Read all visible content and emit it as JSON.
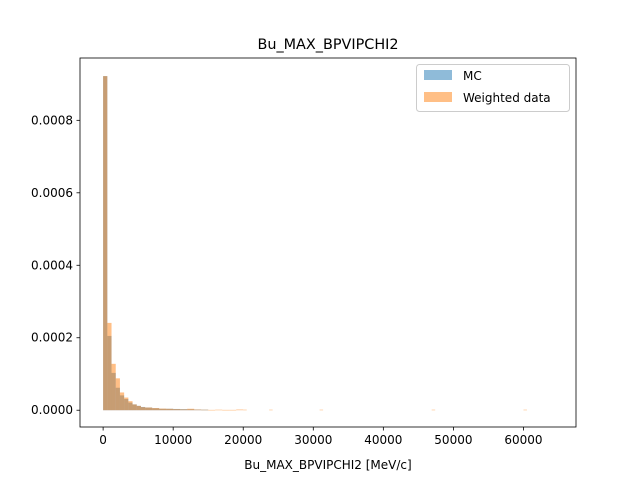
{
  "chart_data": {
    "type": "bar",
    "title": "Bu_MAX_BPVIPCHI2",
    "xlabel": "Bu_MAX_BPVIPCHI2 [MeV/c]",
    "ylabel": "",
    "xlim": [
      -3300,
      67500
    ],
    "ylim": [
      -4.63e-05,
      0.000972
    ],
    "xticks": [
      0,
      10000,
      20000,
      30000,
      40000,
      50000,
      60000
    ],
    "xtick_labels": [
      "0",
      "10000",
      "20000",
      "30000",
      "40000",
      "50000",
      "60000"
    ],
    "yticks": [
      0,
      0.0002,
      0.0004,
      0.0006,
      0.0008
    ],
    "ytick_labels": [
      "0.0000",
      "0.0002",
      "0.0004",
      "0.0006",
      "0.0008"
    ],
    "grid": false,
    "legend_position": "top-right",
    "series": [
      {
        "name": "MC",
        "color": "#1f77b4",
        "alpha": 0.5,
        "bin_edges": [
          0,
          600,
          1200,
          1800,
          2400,
          3000,
          3600,
          4200,
          4800,
          5400,
          6000,
          7000,
          8000,
          9000,
          10000,
          11000,
          12000,
          13000,
          14000,
          15000
        ],
        "values": [
          0.000922,
          0.000205,
          0.000103,
          6.2e-05,
          4.1e-05,
          3.1e-05,
          2.1e-05,
          1.6e-05,
          1.2e-05,
          9e-06,
          7.5e-06,
          5.5e-06,
          4e-06,
          4e-06,
          3.5e-06,
          3e-06,
          2.5e-06,
          2e-06,
          1.5e-06
        ]
      },
      {
        "name": "Weighted data",
        "color": "#ff7f0e",
        "alpha": 0.5,
        "bin_edges": [
          0,
          600,
          1200,
          1800,
          2400,
          3000,
          3600,
          4200,
          4800,
          5400,
          6000,
          7000,
          8000,
          9000,
          10000,
          11000,
          12000,
          13000,
          14000,
          15000,
          16000,
          17000,
          18000,
          19000,
          20000,
          20500
        ],
        "values": [
          0.000922,
          0.000241,
          0.000128,
          8.8e-05,
          4.9e-05,
          3.5e-05,
          2.5e-05,
          1.6e-05,
          1.2e-05,
          8.5e-06,
          7.5e-06,
          6e-06,
          4.5e-06,
          4e-06,
          3e-06,
          2.5e-06,
          4e-06,
          2e-06,
          1.5e-06,
          1e-06,
          1.5e-06,
          1e-06,
          1e-06,
          2e-06,
          1.5e-06
        ],
        "isolated_bins": [
          {
            "x0": 23700,
            "x1": 24200,
            "value": 1.5e-06
          },
          {
            "x0": 30900,
            "x1": 31400,
            "value": 1.5e-06
          },
          {
            "x0": 46900,
            "x1": 47400,
            "value": 1.5e-06
          },
          {
            "x0": 60000,
            "x1": 60500,
            "value": 1.5e-06
          }
        ]
      }
    ]
  }
}
